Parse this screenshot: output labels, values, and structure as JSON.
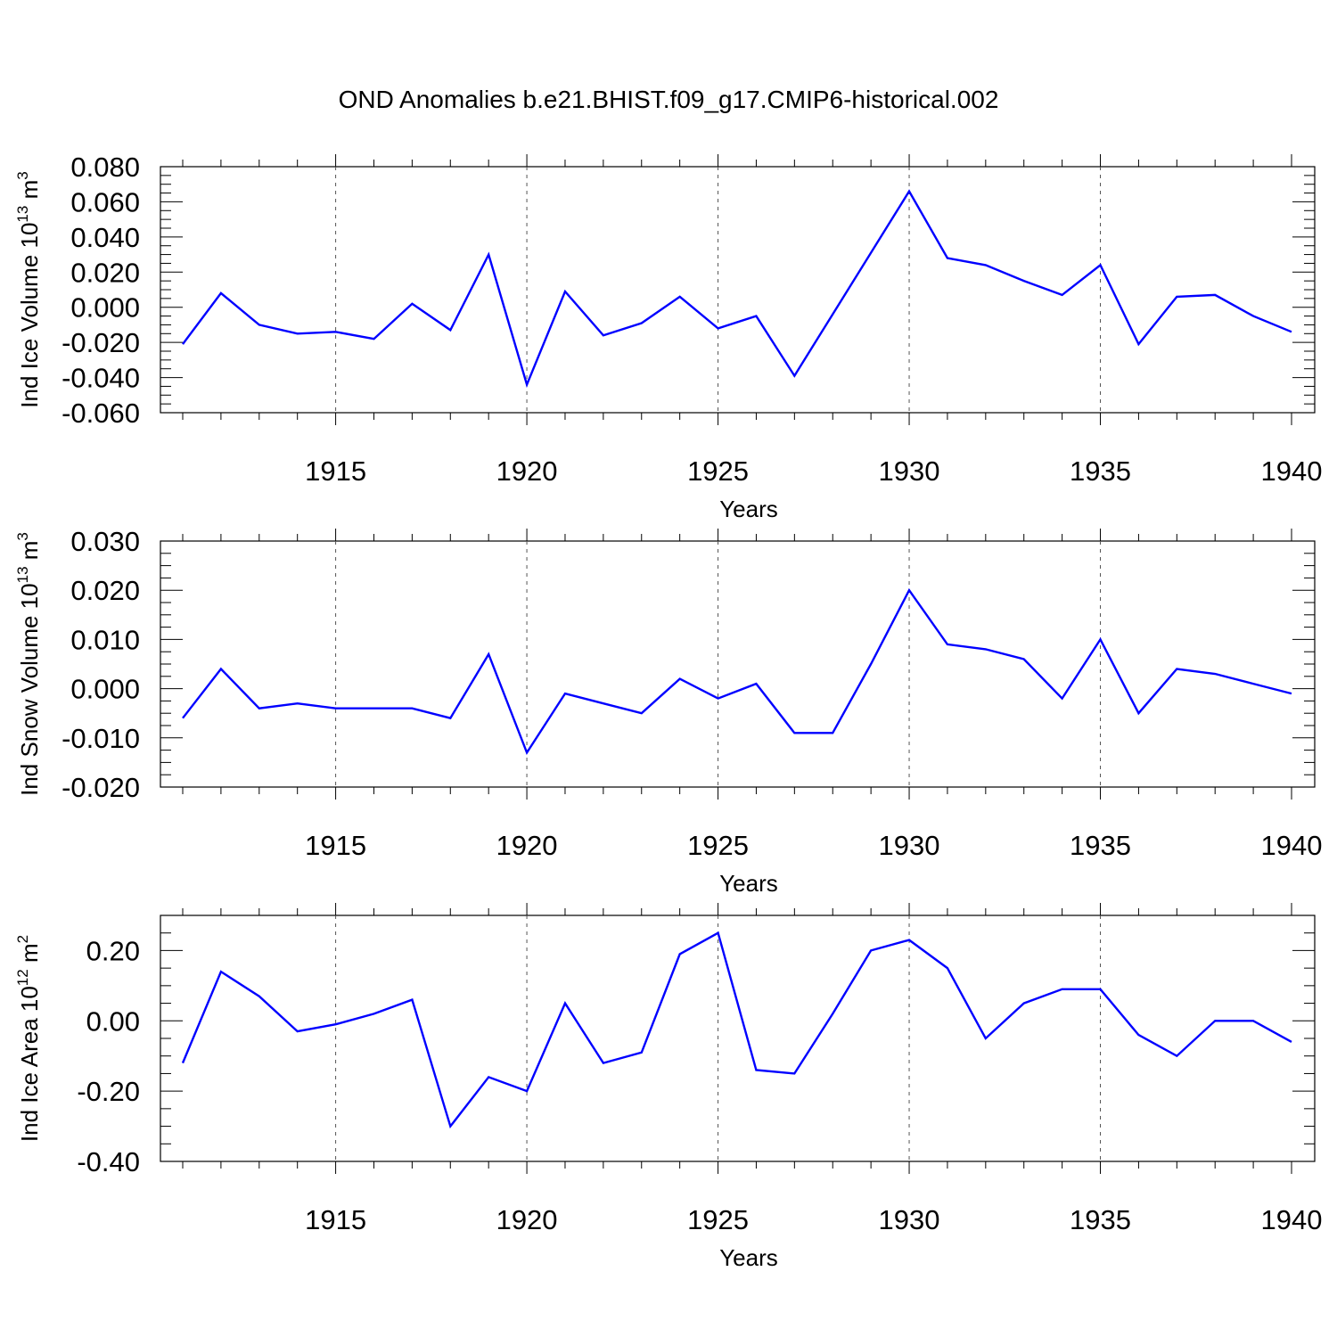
{
  "figure": {
    "title": "OND Anomalies b.e21.BHIST.f09_g17.CMIP6-historical.002",
    "line_color": "#0000ff"
  },
  "chart_data": [
    {
      "type": "line",
      "title": "",
      "xlabel": "Years",
      "ylabel_main": "Ind Ice Volume 10",
      "ylabel_exp": "13",
      "ylabel_unit": " m",
      "ylabel_unit_exp": "3",
      "xlim": [
        1911,
        1940
      ],
      "ylim": [
        -0.06,
        0.08
      ],
      "yticks": [
        -0.06,
        -0.04,
        -0.02,
        0.0,
        0.02,
        0.04,
        0.06,
        0.08
      ],
      "ytick_labels": [
        "-0.060",
        "-0.040",
        "-0.020",
        "0.000",
        "0.020",
        "0.040",
        "0.060",
        "0.080"
      ],
      "xticks": [
        1915,
        1920,
        1925,
        1930,
        1935,
        1940
      ],
      "xtick_labels": [
        "1915",
        "1920",
        "1925",
        "1930",
        "1935",
        "1940"
      ],
      "grid": "vertical dashed at labeled years",
      "series": [
        {
          "name": "Ind Ice Volume",
          "x": [
            1911,
            1912,
            1913,
            1914,
            1915,
            1916,
            1917,
            1918,
            1919,
            1920,
            1921,
            1922,
            1923,
            1924,
            1925,
            1926,
            1927,
            1928,
            1929,
            1930,
            1931,
            1932,
            1933,
            1934,
            1935,
            1936,
            1937,
            1938,
            1939,
            1940
          ],
          "values": [
            -0.021,
            0.008,
            -0.01,
            -0.015,
            -0.014,
            -0.018,
            0.002,
            -0.013,
            0.03,
            -0.044,
            0.009,
            -0.016,
            -0.009,
            0.006,
            -0.012,
            -0.005,
            -0.039,
            -0.004,
            0.031,
            0.066,
            0.028,
            0.024,
            0.015,
            0.007,
            0.024,
            -0.021,
            0.006,
            0.007,
            -0.005,
            -0.014
          ]
        }
      ]
    },
    {
      "type": "line",
      "title": "",
      "xlabel": "Years",
      "ylabel_main": "Ind Snow Volume 10",
      "ylabel_exp": "13",
      "ylabel_unit": " m",
      "ylabel_unit_exp": "3",
      "xlim": [
        1911,
        1940
      ],
      "ylim": [
        -0.02,
        0.03
      ],
      "yticks": [
        -0.02,
        -0.01,
        0.0,
        0.01,
        0.02,
        0.03
      ],
      "ytick_labels": [
        "-0.020",
        "-0.010",
        "0.000",
        "0.010",
        "0.020",
        "0.030"
      ],
      "xticks": [
        1915,
        1920,
        1925,
        1930,
        1935,
        1940
      ],
      "xtick_labels": [
        "1915",
        "1920",
        "1925",
        "1930",
        "1935",
        "1940"
      ],
      "grid": "vertical dashed at labeled years",
      "series": [
        {
          "name": "Ind Snow Volume",
          "x": [
            1911,
            1912,
            1913,
            1914,
            1915,
            1916,
            1917,
            1918,
            1919,
            1920,
            1921,
            1922,
            1923,
            1924,
            1925,
            1926,
            1927,
            1928,
            1929,
            1930,
            1931,
            1932,
            1933,
            1934,
            1935,
            1936,
            1937,
            1938,
            1939,
            1940
          ],
          "values": [
            -0.006,
            0.004,
            -0.004,
            -0.003,
            -0.004,
            -0.004,
            -0.004,
            -0.006,
            0.007,
            -0.013,
            -0.001,
            -0.003,
            -0.005,
            0.002,
            -0.002,
            0.001,
            -0.009,
            -0.009,
            0.005,
            0.02,
            0.009,
            0.008,
            0.006,
            -0.002,
            0.01,
            -0.005,
            0.004,
            0.003,
            0.001,
            -0.001
          ]
        }
      ]
    },
    {
      "type": "line",
      "title": "",
      "xlabel": "Years",
      "ylabel_main": "Ind Ice Area 10",
      "ylabel_exp": "12",
      "ylabel_unit": " m",
      "ylabel_unit_exp": "2",
      "xlim": [
        1911,
        1940
      ],
      "ylim": [
        -0.4,
        0.3
      ],
      "yticks": [
        -0.4,
        -0.2,
        0.0,
        0.2
      ],
      "ytick_labels": [
        "-0.40",
        "-0.20",
        "0.00",
        "0.20"
      ],
      "xticks": [
        1915,
        1920,
        1925,
        1930,
        1935,
        1940
      ],
      "xtick_labels": [
        "1915",
        "1920",
        "1925",
        "1930",
        "1935",
        "1940"
      ],
      "grid": "vertical dashed at labeled years",
      "series": [
        {
          "name": "Ind Ice Area",
          "x": [
            1911,
            1912,
            1913,
            1914,
            1915,
            1916,
            1917,
            1918,
            1919,
            1920,
            1921,
            1922,
            1923,
            1924,
            1925,
            1926,
            1927,
            1928,
            1929,
            1930,
            1931,
            1932,
            1933,
            1934,
            1935,
            1936,
            1937,
            1938,
            1939,
            1940
          ],
          "values": [
            -0.12,
            0.14,
            0.07,
            -0.03,
            -0.01,
            0.02,
            0.06,
            -0.3,
            -0.16,
            -0.2,
            0.05,
            -0.12,
            -0.09,
            0.19,
            0.25,
            -0.14,
            -0.15,
            0.02,
            0.2,
            0.23,
            0.15,
            -0.05,
            0.05,
            0.09,
            0.09,
            -0.04,
            -0.1,
            0.0,
            0.0,
            -0.06
          ]
        }
      ]
    }
  ]
}
